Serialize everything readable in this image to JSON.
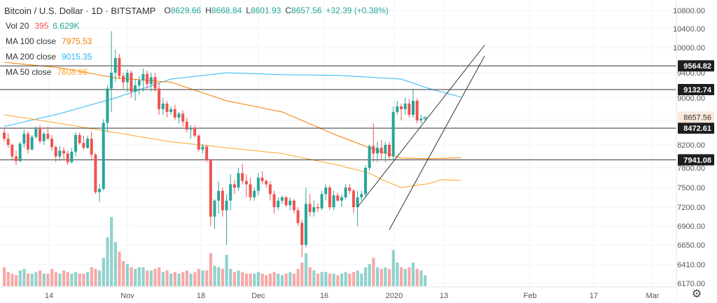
{
  "header": {
    "title": "Bitcoin / U.S. Dollar · 1D · BITSTAMP",
    "open_label": "O",
    "open": "8629.66",
    "high_label": "H",
    "high": "8668.84",
    "low_label": "L",
    "low": "8601.93",
    "close_label": "C",
    "close": "8657.56",
    "change": "+32.39 (+0.38%)"
  },
  "indicators": {
    "vol": {
      "label": "Vol 20",
      "v1": "395",
      "v2": "6.629K",
      "color": "#26a69a"
    },
    "ma100": {
      "label": "MA 100 close",
      "value": "7975.53",
      "color": "#f57c00"
    },
    "ma200": {
      "label": "MA 200 close",
      "value": "9015.35",
      "color": "#29b6f6"
    },
    "ma50": {
      "label": "MA 50 close",
      "value": "7608.98",
      "color": "#f9a825"
    }
  },
  "settings_icon": "gear-icon",
  "chart_data": {
    "type": "candlestick",
    "x_ticks": [
      "14",
      "Nov",
      "18",
      "Dec",
      "16",
      "2020",
      "13",
      "Feb",
      "17",
      "Mar"
    ],
    "y_ticks": [
      6170,
      6410,
      6650,
      6900,
      7200,
      7500,
      7800,
      8200,
      8600,
      9000,
      9400,
      10000,
      10400,
      10800
    ],
    "y_tick_labels": [
      "6170.00",
      "6410.00",
      "6650.00",
      "6900.00",
      "7200.00",
      "7500.00",
      "7800.00",
      "8200.00",
      "8600.00",
      "9000.00",
      "9400.00",
      "10000.00",
      "10400.00",
      "10800.00"
    ],
    "horizontal_levels": [
      {
        "value": 9564.82,
        "label": "9564.82"
      },
      {
        "value": 9132.74,
        "label": "9132.74"
      },
      {
        "value": 8472.61,
        "label": "8472.61"
      },
      {
        "value": 7941.08,
        "label": "7941.08"
      }
    ],
    "last_price": {
      "value": 8657.56,
      "label": "8657.56"
    },
    "up_color": "#26a69a",
    "down_color": "#ef5350",
    "candles": [
      [
        8400,
        8470,
        8250,
        8300
      ],
      [
        8300,
        8390,
        8150,
        8200
      ],
      [
        8200,
        8220,
        7950,
        8000
      ],
      [
        8000,
        8100,
        7850,
        7920
      ],
      [
        7920,
        8250,
        7900,
        8220
      ],
      [
        8220,
        8450,
        8150,
        8380
      ],
      [
        8380,
        8420,
        8050,
        8120
      ],
      [
        8120,
        8360,
        8100,
        8330
      ],
      [
        8330,
        8500,
        8300,
        8460
      ],
      [
        8460,
        8520,
        8220,
        8260
      ],
      [
        8260,
        8410,
        8200,
        8380
      ],
      [
        8380,
        8500,
        8280,
        8300
      ],
      [
        8300,
        8360,
        8100,
        8160
      ],
      [
        8160,
        8190,
        7900,
        8000
      ],
      [
        8000,
        8180,
        7920,
        8100
      ],
      [
        8100,
        8160,
        7950,
        8050
      ],
      [
        8050,
        8100,
        7850,
        7900
      ],
      [
        7900,
        8150,
        7880,
        8080
      ],
      [
        8080,
        8400,
        8000,
        8360
      ],
      [
        8360,
        8400,
        8200,
        8230
      ],
      [
        8230,
        8350,
        8120,
        8150
      ],
      [
        8150,
        8350,
        8130,
        8300
      ],
      [
        8300,
        8420,
        7950,
        8030
      ],
      [
        8030,
        8060,
        7400,
        7430
      ],
      [
        7430,
        7560,
        7280,
        7480
      ],
      [
        7480,
        8620,
        7450,
        8560
      ],
      [
        8560,
        9200,
        8400,
        9150
      ],
      [
        9150,
        10350,
        8750,
        9400
      ],
      [
        9400,
        9950,
        9250,
        9750
      ],
      [
        9750,
        9850,
        9300,
        9350
      ],
      [
        9350,
        9400,
        9150,
        9250
      ],
      [
        9250,
        9480,
        9100,
        9400
      ],
      [
        9400,
        9450,
        9000,
        9100
      ],
      [
        9100,
        9300,
        8950,
        9200
      ],
      [
        9200,
        9350,
        9050,
        9280
      ],
      [
        9280,
        9500,
        9100,
        9380
      ],
      [
        9380,
        9450,
        9150,
        9220
      ],
      [
        9220,
        9400,
        9100,
        9330
      ],
      [
        9330,
        9400,
        9100,
        9150
      ],
      [
        9150,
        9250,
        8700,
        8800
      ],
      [
        8800,
        9000,
        8700,
        8900
      ],
      [
        8900,
        8950,
        8650,
        8750
      ],
      [
        8750,
        8850,
        8700,
        8800
      ],
      [
        8800,
        8880,
        8600,
        8650
      ],
      [
        8650,
        8750,
        8550,
        8720
      ],
      [
        8720,
        8780,
        8500,
        8580
      ],
      [
        8580,
        8650,
        8400,
        8450
      ],
      [
        8450,
        8520,
        8300,
        8480
      ],
      [
        8480,
        8520,
        8320,
        8350
      ],
      [
        8350,
        8380,
        8080,
        8120
      ],
      [
        8120,
        8220,
        8050,
        8170
      ],
      [
        8170,
        8200,
        7900,
        7950
      ],
      [
        7950,
        7960,
        6900,
        7050
      ],
      [
        7050,
        7320,
        6860,
        7300
      ],
      [
        7300,
        7600,
        7100,
        7450
      ],
      [
        7450,
        7500,
        7050,
        7150
      ],
      [
        7150,
        7400,
        6650,
        7300
      ],
      [
        7300,
        7700,
        7150,
        7550
      ],
      [
        7550,
        7620,
        7400,
        7500
      ],
      [
        7500,
        7800,
        7450,
        7720
      ],
      [
        7720,
        7870,
        7550,
        7600
      ],
      [
        7600,
        7700,
        7350,
        7550
      ],
      [
        7550,
        7650,
        7300,
        7350
      ],
      [
        7350,
        7500,
        7300,
        7450
      ],
      [
        7450,
        7720,
        7380,
        7650
      ],
      [
        7650,
        7750,
        7550,
        7600
      ],
      [
        7600,
        7620,
        7500,
        7550
      ],
      [
        7550,
        7600,
        7300,
        7400
      ],
      [
        7400,
        7450,
        7100,
        7200
      ],
      [
        7200,
        7350,
        7150,
        7300
      ],
      [
        7300,
        7380,
        7250,
        7350
      ],
      [
        7350,
        7370,
        7200,
        7230
      ],
      [
        7230,
        7350,
        7150,
        7300
      ],
      [
        7300,
        7320,
        7100,
        7150
      ],
      [
        7150,
        7200,
        6900,
        6950
      ],
      [
        6950,
        7000,
        6500,
        6650
      ],
      [
        6650,
        7500,
        6620,
        7250
      ],
      [
        7250,
        7400,
        7050,
        7120
      ],
      [
        7120,
        7300,
        7050,
        7200
      ],
      [
        7200,
        7260,
        7120,
        7180
      ],
      [
        7180,
        7450,
        7150,
        7400
      ],
      [
        7400,
        7550,
        7300,
        7500
      ],
      [
        7500,
        7530,
        7150,
        7200
      ],
      [
        7200,
        7450,
        7150,
        7380
      ],
      [
        7380,
        7420,
        7280,
        7300
      ],
      [
        7300,
        7400,
        7200,
        7350
      ],
      [
        7350,
        7550,
        7320,
        7500
      ],
      [
        7500,
        7550,
        7400,
        7450
      ],
      [
        7450,
        7480,
        7100,
        7200
      ],
      [
        7200,
        7450,
        6900,
        7350
      ],
      [
        7350,
        7450,
        7300,
        7400
      ],
      [
        7400,
        7850,
        7350,
        7800
      ],
      [
        7800,
        8200,
        7760,
        8180
      ],
      [
        8180,
        8550,
        7900,
        8050
      ],
      [
        8050,
        8250,
        7900,
        8150
      ],
      [
        8150,
        8280,
        7950,
        8050
      ],
      [
        8050,
        8250,
        7900,
        8200
      ],
      [
        8200,
        8250,
        7950,
        8000
      ],
      [
        8000,
        8850,
        7950,
        8750
      ],
      [
        8750,
        8950,
        8700,
        8850
      ],
      [
        8850,
        8900,
        8600,
        8800
      ],
      [
        8800,
        9000,
        8700,
        8900
      ],
      [
        8900,
        8980,
        8650,
        8700
      ],
      [
        8700,
        9150,
        8650,
        8950
      ],
      [
        8950,
        8990,
        8550,
        8600
      ],
      [
        8600,
        8700,
        8550,
        8630
      ],
      [
        8630,
        8669,
        8602,
        8657
      ]
    ],
    "volume": [
      0.6,
      0.45,
      0.4,
      0.35,
      0.5,
      0.55,
      0.4,
      0.4,
      0.45,
      0.5,
      0.4,
      0.4,
      0.55,
      0.45,
      0.4,
      0.5,
      0.45,
      0.4,
      0.45,
      0.4,
      0.4,
      0.45,
      0.6,
      0.55,
      0.5,
      0.9,
      1.55,
      2.2,
      1.4,
      1.1,
      0.8,
      0.7,
      0.6,
      0.55,
      0.6,
      0.6,
      0.5,
      0.5,
      0.55,
      0.6,
      0.45,
      0.5,
      0.4,
      0.45,
      0.4,
      0.45,
      0.5,
      0.4,
      0.45,
      0.55,
      0.5,
      0.5,
      1.05,
      0.65,
      0.6,
      0.55,
      1.0,
      0.55,
      0.45,
      0.5,
      0.45,
      0.4,
      0.4,
      0.4,
      0.45,
      0.4,
      0.35,
      0.4,
      0.45,
      0.4,
      0.35,
      0.4,
      0.45,
      0.4,
      0.55,
      0.75,
      1.05,
      0.6,
      0.5,
      0.4,
      0.45,
      0.45,
      0.4,
      0.4,
      0.35,
      0.4,
      0.45,
      0.4,
      0.45,
      0.5,
      0.4,
      0.6,
      0.7,
      0.9,
      0.6,
      0.55,
      0.6,
      0.55,
      1.15,
      0.75,
      0.6,
      0.55,
      0.6,
      0.75,
      0.55,
      0.5,
      0.35
    ],
    "ma50": [
      [
        0,
        8700
      ],
      [
        14,
        8550
      ],
      [
        28,
        8400
      ],
      [
        42,
        8250
      ],
      [
        56,
        8150
      ],
      [
        70,
        8050
      ],
      [
        84,
        7850
      ],
      [
        92,
        7720
      ],
      [
        96,
        7600
      ],
      [
        100,
        7500
      ],
      [
        107,
        7560
      ],
      [
        110,
        7620
      ],
      [
        115,
        7608.98
      ]
    ],
    "ma100": [
      [
        0,
        9650
      ],
      [
        14,
        9520
      ],
      [
        28,
        9320
      ],
      [
        42,
        9250
      ],
      [
        56,
        8950
      ],
      [
        70,
        8750
      ],
      [
        84,
        8350
      ],
      [
        92,
        8150
      ],
      [
        100,
        7970
      ],
      [
        107,
        7960
      ],
      [
        115,
        7975.53
      ]
    ],
    "ma200": [
      [
        0,
        8500
      ],
      [
        14,
        8720
      ],
      [
        28,
        9000
      ],
      [
        42,
        9300
      ],
      [
        56,
        9400
      ],
      [
        70,
        9370
      ],
      [
        84,
        9360
      ],
      [
        100,
        9300
      ],
      [
        107,
        9150
      ],
      [
        115,
        9015.35
      ]
    ],
    "trend_lines": [
      {
        "from": [
          89,
          7200
        ],
        "to": [
          121,
          10050
        ]
      },
      {
        "from": [
          97,
          6850
        ],
        "to": [
          121,
          9800
        ]
      }
    ]
  }
}
